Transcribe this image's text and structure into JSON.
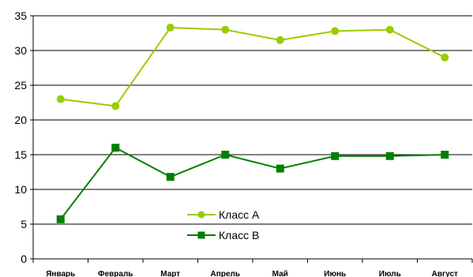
{
  "chart_data": {
    "type": "line",
    "categories": [
      "Январь",
      "Февраль",
      "Март",
      "Апрель",
      "Май",
      "Июнь",
      "Июль",
      "Август"
    ],
    "series": [
      {
        "name": "Класс А",
        "values": [
          23,
          22,
          33.3,
          33,
          31.5,
          32.8,
          33,
          29
        ],
        "color": "#99cc00",
        "marker": "circle"
      },
      {
        "name": "Класс В",
        "values": [
          5.7,
          16,
          11.8,
          15,
          13,
          14.8,
          14.8,
          15
        ],
        "color": "#008000",
        "marker": "square"
      }
    ],
    "ylim": [
      0,
      35
    ],
    "yticks": [
      0,
      5,
      10,
      15,
      20,
      25,
      30,
      35
    ],
    "grid": true,
    "legend_position": "bottom-center"
  }
}
